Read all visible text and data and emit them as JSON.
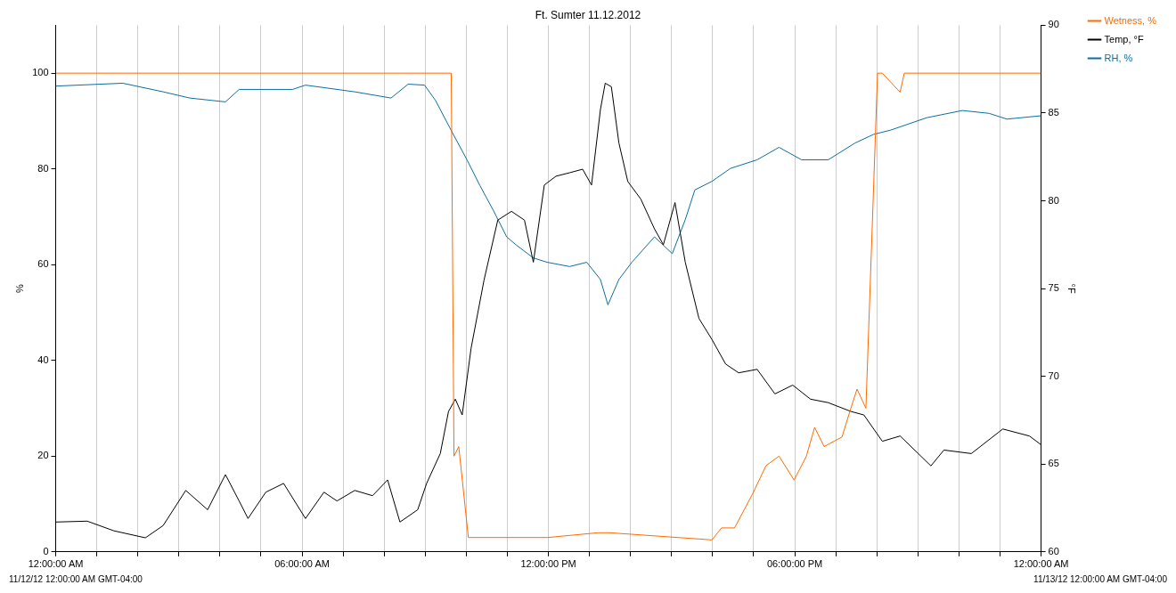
{
  "chart_data": {
    "type": "line",
    "title": "Ft. Sumter 11.12.2012",
    "ylabel": "%",
    "y2label": "°F",
    "xlim": [
      "2012-11-12T00:00",
      "2012-11-13T00:00"
    ],
    "xticks": [
      {
        "value": "2012-11-12T00:00",
        "label": "12:00:00 AM"
      },
      {
        "value": "2012-11-12T01:00",
        "label": null
      },
      {
        "value": "2012-11-12T02:00",
        "label": null
      },
      {
        "value": "2012-11-12T03:00",
        "label": null
      },
      {
        "value": "2012-11-12T04:00",
        "label": null
      },
      {
        "value": "2012-11-12T05:00",
        "label": null
      },
      {
        "value": "2012-11-12T06:00",
        "label": "06:00:00 AM"
      },
      {
        "value": "2012-11-12T07:00",
        "label": null
      },
      {
        "value": "2012-11-12T08:00",
        "label": null
      },
      {
        "value": "2012-11-12T09:00",
        "label": null
      },
      {
        "value": "2012-11-12T10:00",
        "label": null
      },
      {
        "value": "2012-11-12T11:00",
        "label": null
      },
      {
        "value": "2012-11-12T12:00",
        "label": "12:00:00 PM"
      },
      {
        "value": "2012-11-12T13:00",
        "label": null
      },
      {
        "value": "2012-11-12T14:00",
        "label": null
      },
      {
        "value": "2012-11-12T15:00",
        "label": null
      },
      {
        "value": "2012-11-12T16:00",
        "label": null
      },
      {
        "value": "2012-11-12T17:00",
        "label": null
      },
      {
        "value": "2012-11-12T18:00",
        "label": "06:00:00 PM"
      },
      {
        "value": "2012-11-12T19:00",
        "label": null
      },
      {
        "value": "2012-11-12T20:00",
        "label": null
      },
      {
        "value": "2012-11-12T21:00",
        "label": null
      },
      {
        "value": "2012-11-12T22:00",
        "label": null
      },
      {
        "value": "2012-11-12T23:00",
        "label": null
      },
      {
        "value": "2012-11-13T00:00",
        "label": "12:00:00 AM"
      }
    ],
    "ylim": [
      0,
      110
    ],
    "yticks": [
      0,
      20,
      40,
      60,
      80,
      100
    ],
    "y2lim": [
      60,
      90
    ],
    "y2ticks": [
      60,
      65,
      70,
      75,
      80,
      85,
      90
    ],
    "grid": "x",
    "legend": "top right",
    "marker": "none",
    "line_style": "solid",
    "annotations": [
      "11/12/12 12:00:00 AM GMT-04:00",
      "11/13/12 12:00:00 AM GMT-04:00"
    ],
    "series": [
      {
        "name": "Wetness, %",
        "color": "#ff6a00",
        "x": [
          "2012-11-12T00:00",
          "2012-11-12T09:38",
          "2012-11-12T09:42",
          "2012-11-12T09:49",
          "2012-11-12T10:03",
          "2012-11-12T11:59",
          "2012-11-12T13:13",
          "2012-11-12T13:29",
          "2012-11-12T15:59",
          "2012-11-12T16:13",
          "2012-11-12T16:32",
          "2012-11-12T16:58",
          "2012-11-12T17:18",
          "2012-11-12T17:37",
          "2012-11-12T17:59",
          "2012-11-12T18:17",
          "2012-11-12T18:29",
          "2012-11-12T18:43",
          "2012-11-12T19:09",
          "2012-11-12T19:22",
          "2012-11-12T19:31",
          "2012-11-12T19:44",
          "2012-11-12T20:01",
          "2012-11-12T20:08",
          "2012-11-12T20:34",
          "2012-11-12T20:40",
          "2012-11-13T00:00"
        ],
        "values": [
          100,
          100,
          20,
          22,
          3,
          3,
          4,
          4,
          2.5,
          5,
          5,
          12,
          18,
          20,
          15,
          20,
          26,
          22,
          24,
          30,
          34,
          30,
          100,
          100,
          96,
          100,
          100
        ]
      },
      {
        "name": "Temp, °F",
        "color": "#000000",
        "axis": "y2",
        "x": [
          "2012-11-12T00:00",
          "2012-11-12T00:46",
          "2012-11-12T01:25",
          "2012-11-12T02:11",
          "2012-11-12T02:37",
          "2012-11-12T03:10",
          "2012-11-12T03:42",
          "2012-11-12T04:08",
          "2012-11-12T04:28",
          "2012-11-12T04:41",
          "2012-11-12T05:07",
          "2012-11-12T05:33",
          "2012-11-12T06:05",
          "2012-11-12T06:32",
          "2012-11-12T06:51",
          "2012-11-12T07:17",
          "2012-11-12T07:43",
          "2012-11-12T08:05",
          "2012-11-12T08:23",
          "2012-11-12T08:49",
          "2012-11-12T09:02",
          "2012-11-12T09:22",
          "2012-11-12T09:34",
          "2012-11-12T09:44",
          "2012-11-12T09:54",
          "2012-11-12T10:07",
          "2012-11-12T10:26",
          "2012-11-12T10:46",
          "2012-11-12T11:06",
          "2012-11-12T11:25",
          "2012-11-12T11:38",
          "2012-11-12T11:54",
          "2012-11-12T12:11",
          "2012-11-12T12:31",
          "2012-11-12T12:50",
          "2012-11-12T13:03",
          "2012-11-12T13:16",
          "2012-11-12T13:23",
          "2012-11-12T13:32",
          "2012-11-12T13:43",
          "2012-11-12T13:56",
          "2012-11-12T14:15",
          "2012-11-12T14:35",
          "2012-11-12T14:48",
          "2012-11-12T15:05",
          "2012-11-12T15:20",
          "2012-11-12T15:40",
          "2012-11-12T15:59",
          "2012-11-12T16:19",
          "2012-11-12T16:38",
          "2012-11-12T17:05",
          "2012-11-12T17:31",
          "2012-11-12T17:57",
          "2012-11-12T18:23",
          "2012-11-12T18:49",
          "2012-11-12T19:22",
          "2012-11-12T19:41",
          "2012-11-12T20:08",
          "2012-11-12T20:34",
          "2012-11-12T21:19",
          "2012-11-12T21:38",
          "2012-11-12T22:18",
          "2012-11-12T23:04",
          "2012-11-12T23:43",
          "2012-11-13T00:00"
        ],
        "values": [
          61.7,
          61.75,
          61.2,
          60.8,
          61.5,
          63.5,
          62.4,
          64.4,
          62.9,
          61.9,
          63.4,
          63.9,
          61.9,
          63.4,
          62.9,
          63.5,
          63.2,
          64.1,
          61.7,
          62.4,
          63.9,
          65.6,
          68,
          68.7,
          67.8,
          71.6,
          75.5,
          78.9,
          79.4,
          78.9,
          76.5,
          80.9,
          81.4,
          81.6,
          81.8,
          80.9,
          85.2,
          86.7,
          86.5,
          83.3,
          81.1,
          80.1,
          78.4,
          77.5,
          79.9,
          76.5,
          73.3,
          72.1,
          70.7,
          70.2,
          70.4,
          69,
          69.5,
          68.7,
          68.5,
          68,
          67.8,
          66.3,
          66.6,
          64.9,
          65.8,
          65.6,
          67,
          66.6,
          66.1
        ]
      },
      {
        "name": "RH, %",
        "color": "#0b6fa0",
        "x": [
          "2012-11-12T00:00",
          "2012-11-12T01:38",
          "2012-11-12T02:37",
          "2012-11-12T03:16",
          "2012-11-12T04:08",
          "2012-11-12T04:28",
          "2012-11-12T05:46",
          "2012-11-12T06:05",
          "2012-11-12T07:17",
          "2012-11-12T08:10",
          "2012-11-12T08:35",
          "2012-11-12T08:59",
          "2012-11-12T09:15",
          "2012-11-12T09:41",
          "2012-11-12T10:01",
          "2012-11-12T10:20",
          "2012-11-12T10:40",
          "2012-11-12T10:59",
          "2012-11-12T11:13",
          "2012-11-12T11:38",
          "2012-11-12T11:58",
          "2012-11-12T12:31",
          "2012-11-12T12:56",
          "2012-11-12T13:16",
          "2012-11-12T13:27",
          "2012-11-12T13:43",
          "2012-11-12T14:02",
          "2012-11-12T14:35",
          "2012-11-12T15:01",
          "2012-11-12T15:20",
          "2012-11-12T15:34",
          "2012-11-12T15:59",
          "2012-11-12T16:26",
          "2012-11-12T17:05",
          "2012-11-12T17:37",
          "2012-11-12T18:10",
          "2012-11-12T18:49",
          "2012-11-12T19:28",
          "2012-11-12T19:55",
          "2012-11-12T20:20",
          "2012-11-12T21:13",
          "2012-11-12T22:05",
          "2012-11-12T22:44",
          "2012-11-12T23:10",
          "2012-11-13T00:00"
        ],
        "values": [
          97.3,
          97.9,
          96.1,
          94.8,
          94,
          96.6,
          96.6,
          97.5,
          96.1,
          94.8,
          97.7,
          97.5,
          94.3,
          87.2,
          81.9,
          76.5,
          71.2,
          65.8,
          64.1,
          61.4,
          60.5,
          59.6,
          60.5,
          56.9,
          51.6,
          56.9,
          60.5,
          65.8,
          62.3,
          69.4,
          75.6,
          77.4,
          80.1,
          81.9,
          84.5,
          81.9,
          81.9,
          85.4,
          87.2,
          88.1,
          90.7,
          92.2,
          91.6,
          90.4,
          91.1
        ]
      }
    ]
  }
}
